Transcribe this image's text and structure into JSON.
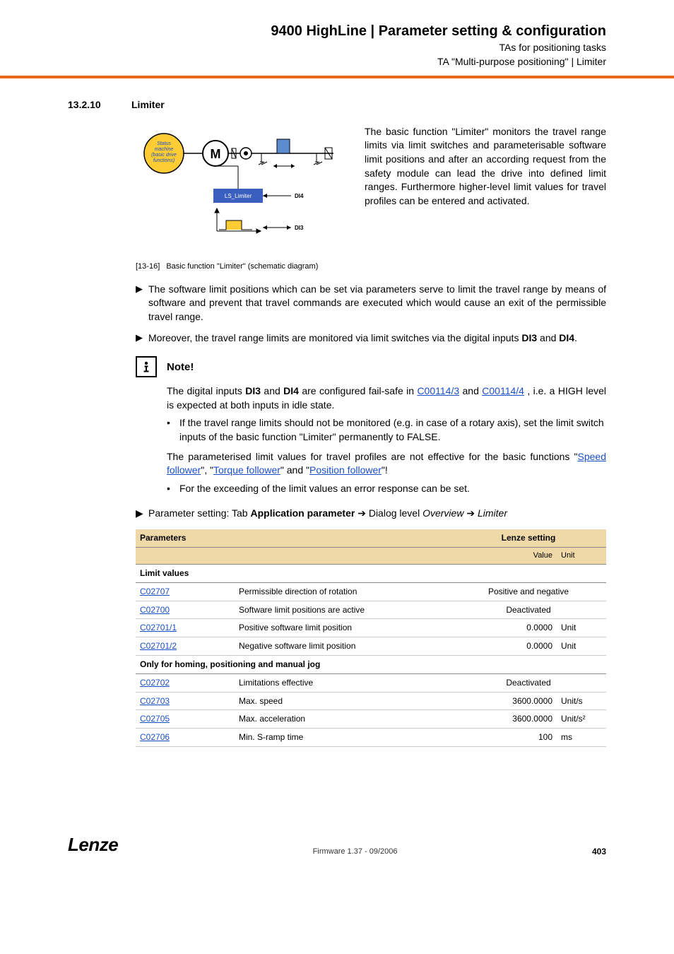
{
  "header": {
    "title": "9400 HighLine | Parameter setting & configuration",
    "sub1": "TAs for positioning tasks",
    "sub2": "TA \"Multi-purpose positioning\" | Limiter",
    "rule_color": "#e8691b"
  },
  "section": {
    "num": "13.2.10",
    "title": "Limiter"
  },
  "figure": {
    "status_lines": [
      "Status",
      "machine",
      "(basic drive",
      "functions)"
    ],
    "ls_label": "LS_Limiter",
    "di4": "DI4",
    "di3": "DI3",
    "caption_tag": "[13-16]",
    "caption_text": "Basic function \"Limiter\" (schematic diagram)",
    "description": "The basic function \"Limiter\" monitors the travel range limits via limit switches and parameterisable software limit positions and after an according request from the safety module can lead the drive into defined limit ranges. Furthermore higher-level limit values for travel profiles can be entered and activated."
  },
  "bullets": [
    {
      "text_parts": [
        "The software limit positions which can be set via parameters serve to limit the travel range by means of software and prevent that travel commands are executed which would cause an exit of the permissible travel range."
      ]
    },
    {
      "text_parts": [
        "Moreover, the travel range limits are monitored via limit switches via the digital inputs ",
        {
          "b": "DI3"
        },
        " and ",
        {
          "b": "DI4"
        },
        "."
      ]
    }
  ],
  "note": {
    "title": "Note!",
    "p1_pre": "The digital inputs ",
    "p1_b1": "DI3",
    "p1_mid1": " and ",
    "p1_b2": "DI4",
    "p1_mid2": " are configured fail-safe in ",
    "p1_link1": "C00114/3",
    "p1_mid3": " and ",
    "p1_link2": "C00114/4",
    "p1_post": " , i.e. a HIGH level is expected at both inputs in idle state.",
    "sub1": "If the travel range limits should not be monitored (e.g. in case of a rotary axis), set the limit switch inputs of the basic function \"Limiter\" permanently to FALSE.",
    "p2_pre": "The parameterised limit values for travel profiles are not effective for the basic functions \"",
    "p2_l1": "Speed follower",
    "p2_m1": "\", \"",
    "p2_l2": "Torque follower",
    "p2_m2": "\" and \"",
    "p2_l3": "Position follower",
    "p2_post": "\"!",
    "sub2": "For the exceeding of the limit values an error response can be set."
  },
  "param_line": {
    "pre": "Parameter setting: Tab ",
    "b1": "Application parameter",
    "arrow1": " ➔ ",
    "mid1": "Dialog level ",
    "i1": "Overview",
    "arrow2": " ➔ ",
    "i2": "Limiter"
  },
  "table": {
    "headers": {
      "param": "Parameters",
      "lenze": "Lenze setting",
      "value": "Value",
      "unit": "Unit"
    },
    "group1": "Limit values",
    "group2": "Only for homing, positioning and manual jog",
    "rows1": [
      {
        "code": "C02707",
        "desc": "Permissible direction of rotation",
        "value": "Positive and negative",
        "unit": "",
        "center": true
      },
      {
        "code": "C02700",
        "desc": "Software limit positions are active",
        "value": "Deactivated",
        "unit": "",
        "center": true
      },
      {
        "code": "C02701/1",
        "desc": "Positive software limit position",
        "value": "0.0000",
        "unit": "Unit",
        "center": false
      },
      {
        "code": "C02701/2",
        "desc": "Negative software limit position",
        "value": "0.0000",
        "unit": "Unit",
        "center": false
      }
    ],
    "rows2": [
      {
        "code": "C02702",
        "desc": "Limitations effective",
        "value": "Deactivated",
        "unit": "",
        "center": true
      },
      {
        "code": "C02703",
        "desc": "Max. speed",
        "value": "3600.0000",
        "unit": "Unit/s",
        "center": false
      },
      {
        "code": "C02705",
        "desc": "Max. acceleration",
        "value": "3600.0000",
        "unit": "Unit/s²",
        "center": false
      },
      {
        "code": "C02706",
        "desc": "Min. S-ramp time",
        "value": "100",
        "unit": "ms",
        "center": false
      }
    ]
  },
  "footer": {
    "logo": "Lenze",
    "center": "Firmware 1.37 - 09/2006",
    "page": "403"
  }
}
